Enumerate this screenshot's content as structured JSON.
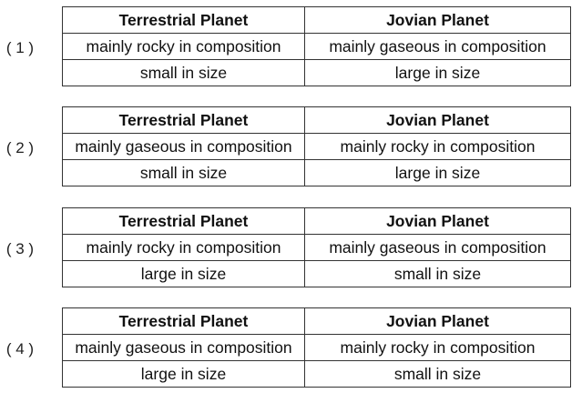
{
  "options": [
    {
      "label": "( 1 )",
      "header": [
        "Terrestrial Planet",
        "Jovian Planet"
      ],
      "rows": [
        [
          "mainly rocky in composition",
          "mainly gaseous in composition"
        ],
        [
          "small in size",
          "large in size"
        ]
      ]
    },
    {
      "label": "( 2 )",
      "header": [
        "Terrestrial Planet",
        "Jovian Planet"
      ],
      "rows": [
        [
          "mainly gaseous in composition",
          "mainly rocky in composition"
        ],
        [
          "small in size",
          "large in size"
        ]
      ]
    },
    {
      "label": "( 3 )",
      "header": [
        "Terrestrial Planet",
        "Jovian Planet"
      ],
      "rows": [
        [
          "mainly rocky in composition",
          "mainly gaseous in composition"
        ],
        [
          "large in size",
          "small in size"
        ]
      ]
    },
    {
      "label": "( 4 )",
      "header": [
        "Terrestrial Planet",
        "Jovian Planet"
      ],
      "rows": [
        [
          "mainly gaseous in composition",
          "mainly rocky in composition"
        ],
        [
          "large in size",
          "small in size"
        ]
      ]
    }
  ]
}
